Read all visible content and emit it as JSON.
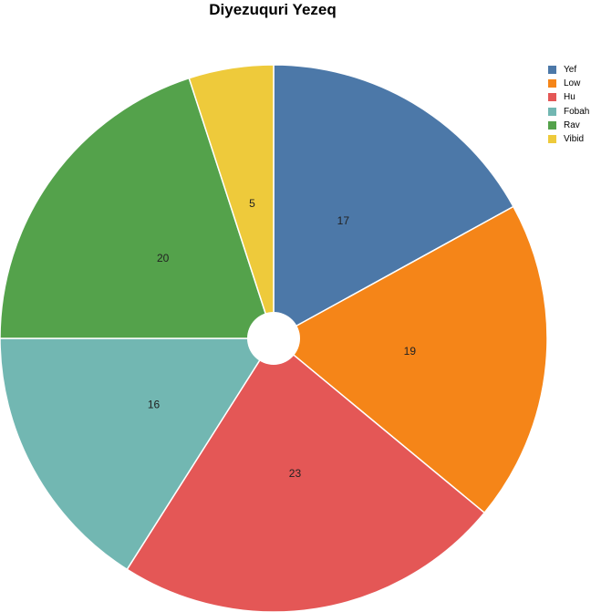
{
  "chart_data": {
    "type": "pie",
    "title": "Diyezuquri Yezeq",
    "categories": [
      "Yef",
      "Low",
      "Hu",
      "Fobah",
      "Rav",
      "Vibid"
    ],
    "values": [
      17,
      19,
      23,
      16,
      20,
      5
    ],
    "colors": [
      "#4c78a8",
      "#f58518",
      "#e45756",
      "#72b7b2",
      "#54a24b",
      "#eeca3b"
    ],
    "data_labels": [
      "17",
      "19",
      "23",
      "16",
      "20",
      "5"
    ],
    "legend": {
      "position": "top-right",
      "entries": [
        "Yef",
        "Low",
        "Hu",
        "Fobah",
        "Rav",
        "Vibid"
      ]
    },
    "inner_hole": true
  }
}
